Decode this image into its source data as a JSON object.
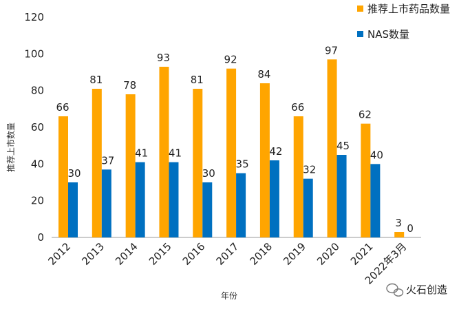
{
  "chart_data": {
    "type": "bar",
    "categories": [
      "2012",
      "2013",
      "2014",
      "2015",
      "2016",
      "2017",
      "2018",
      "2019",
      "2020",
      "2021",
      "2022年3月"
    ],
    "series": [
      {
        "name": "推荐上市药品数量",
        "color": "#FFA500",
        "values": [
          66,
          81,
          78,
          93,
          81,
          92,
          84,
          66,
          97,
          62,
          3
        ]
      },
      {
        "name": "NAS数量",
        "color": "#0070C0",
        "values": [
          30,
          37,
          41,
          41,
          30,
          35,
          42,
          32,
          45,
          40,
          0
        ]
      }
    ],
    "xlabel": "年份",
    "ylabel": "推荐上市数量",
    "ylim": [
      0,
      120
    ],
    "yticks": [
      0,
      20,
      40,
      60,
      80,
      100,
      120
    ],
    "grid": false,
    "legend": "top-right"
  },
  "watermark": {
    "text": "火石创造",
    "icon": "wechat-icon"
  }
}
